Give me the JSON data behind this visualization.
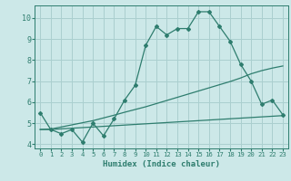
{
  "line1_x": [
    0,
    1,
    2,
    3,
    4,
    5,
    6,
    7,
    8,
    9,
    10,
    11,
    12,
    13,
    14,
    15,
    16,
    17,
    18,
    19,
    20,
    21,
    22,
    23
  ],
  "line1_y": [
    5.5,
    4.7,
    4.5,
    4.7,
    4.1,
    5.0,
    4.4,
    5.2,
    6.1,
    6.8,
    8.7,
    9.6,
    9.2,
    9.5,
    9.5,
    10.3,
    10.3,
    9.6,
    8.9,
    7.8,
    7.0,
    5.9,
    6.1,
    5.4
  ],
  "line2_x": [
    0,
    1,
    2,
    3,
    4,
    5,
    6,
    7,
    8,
    9,
    10,
    11,
    12,
    13,
    14,
    15,
    16,
    17,
    18,
    19,
    20,
    21,
    22,
    23
  ],
  "line2_y": [
    4.7,
    4.72,
    4.82,
    4.92,
    5.02,
    5.12,
    5.25,
    5.38,
    5.52,
    5.65,
    5.78,
    5.93,
    6.08,
    6.23,
    6.38,
    6.53,
    6.68,
    6.83,
    6.98,
    7.15,
    7.35,
    7.5,
    7.62,
    7.72
  ],
  "line3_x": [
    0,
    1,
    2,
    3,
    4,
    5,
    6,
    7,
    8,
    9,
    10,
    11,
    12,
    13,
    14,
    15,
    16,
    17,
    18,
    19,
    20,
    21,
    22,
    23
  ],
  "line3_y": [
    4.7,
    4.7,
    4.73,
    4.76,
    4.79,
    4.82,
    4.85,
    4.88,
    4.91,
    4.94,
    4.97,
    5.0,
    5.03,
    5.06,
    5.09,
    5.12,
    5.15,
    5.18,
    5.21,
    5.24,
    5.27,
    5.3,
    5.33,
    5.36
  ],
  "line_color": "#2e7d6e",
  "bg_color": "#cce8e8",
  "grid_color": "#aacfcf",
  "xlabel": "Humidex (Indice chaleur)",
  "xlim": [
    -0.5,
    23.5
  ],
  "ylim": [
    3.8,
    10.6
  ],
  "yticks": [
    4,
    5,
    6,
    7,
    8,
    9,
    10
  ],
  "xticks": [
    0,
    1,
    2,
    3,
    4,
    5,
    6,
    7,
    8,
    9,
    10,
    11,
    12,
    13,
    14,
    15,
    16,
    17,
    18,
    19,
    20,
    21,
    22,
    23
  ]
}
